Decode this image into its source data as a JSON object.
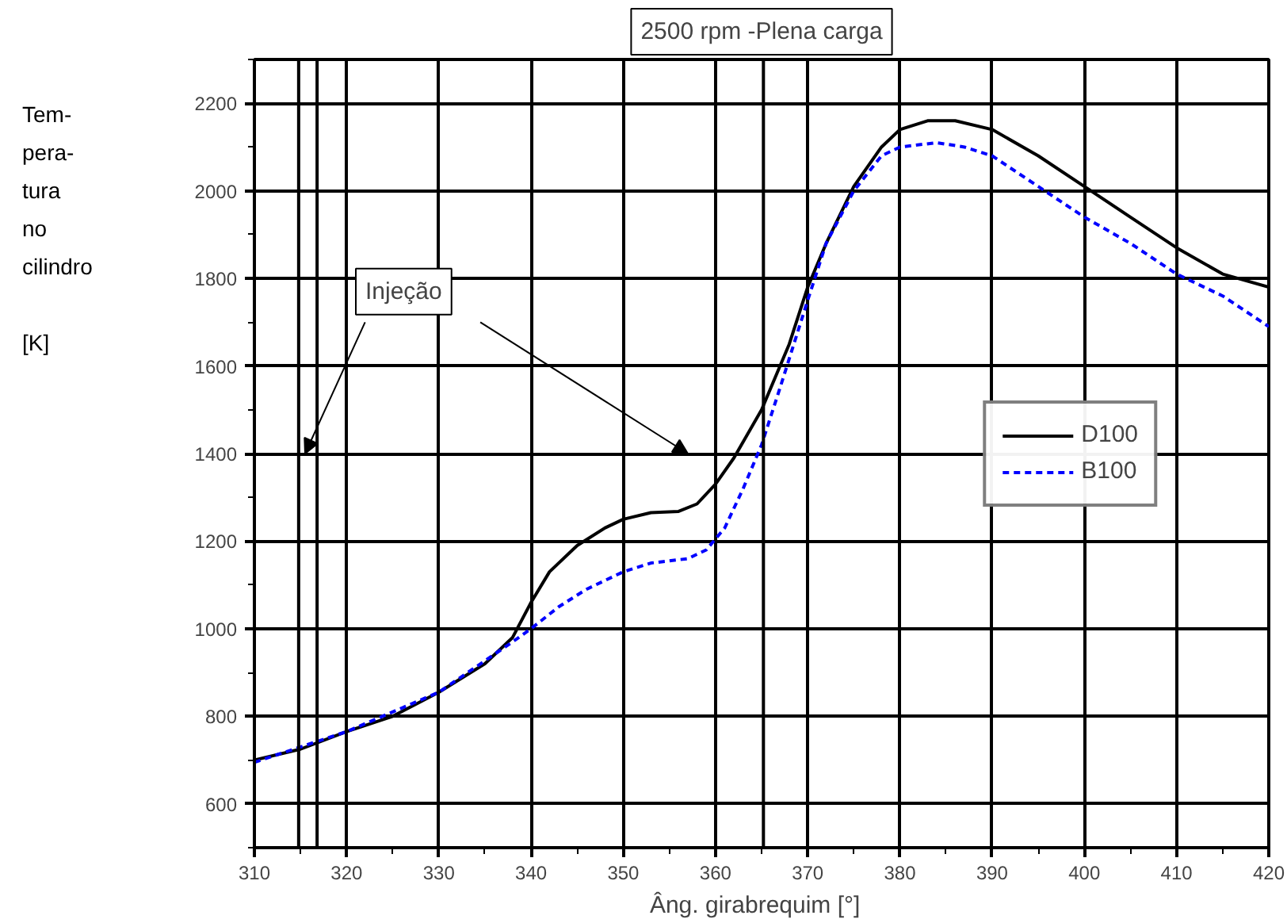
{
  "chart_data": {
    "type": "line",
    "title": "2500 rpm -Plena carga",
    "xlabel": "Âng. girabrequim   [°]",
    "ylabel": "Tem-\npera-\ntura\nno\ncilindro\n\n[K]",
    "xlim": [
      310,
      420
    ],
    "xticks": [
      310,
      320,
      330,
      340,
      350,
      360,
      370,
      380,
      390,
      400,
      410,
      420
    ],
    "ylim": [
      500,
      2300
    ],
    "yticks": [
      600,
      800,
      1000,
      1200,
      1400,
      1600,
      1800,
      2000,
      2200
    ],
    "grid": true,
    "legend": "right",
    "annotations": [
      "Injeção"
    ],
    "ref_lines": [
      {
        "axis": "x",
        "value": 314.8,
        "label": null,
        "color": "#000000"
      },
      {
        "axis": "x",
        "value": 316.8,
        "label": null,
        "color": "#000000"
      },
      {
        "axis": "x",
        "value": 365.2,
        "label": null,
        "color": "#000000"
      }
    ],
    "series": [
      {
        "name": "D100",
        "color": "#000000",
        "line_style": "solid",
        "x": [
          310,
          315,
          320,
          325,
          330,
          335,
          338,
          340,
          342,
          345,
          348,
          350,
          353,
          356,
          358,
          360,
          362,
          365,
          368,
          370,
          372,
          375,
          378,
          380,
          383,
          386,
          390,
          395,
          400,
          405,
          410,
          415,
          420
        ],
        "values": [
          700,
          725,
          765,
          800,
          855,
          920,
          980,
          1060,
          1130,
          1190,
          1230,
          1250,
          1265,
          1268,
          1285,
          1330,
          1390,
          1500,
          1650,
          1780,
          1880,
          2010,
          2100,
          2140,
          2160,
          2160,
          2140,
          2080,
          2010,
          1940,
          1870,
          1810,
          1780
        ]
      },
      {
        "name": "B100",
        "color": "#0000ff",
        "line_style": "dashed",
        "x": [
          310,
          320,
          330,
          338,
          340,
          343,
          346,
          350,
          353,
          357,
          359,
          361,
          363,
          365,
          367,
          370,
          372,
          375,
          378,
          380,
          384,
          387,
          390,
          395,
          400,
          405,
          410,
          415,
          420
        ],
        "values": [
          695,
          765,
          855,
          970,
          1000,
          1050,
          1090,
          1130,
          1150,
          1160,
          1180,
          1230,
          1320,
          1420,
          1550,
          1750,
          1880,
          2000,
          2080,
          2100,
          2110,
          2100,
          2080,
          2010,
          1940,
          1880,
          1810,
          1760,
          1690
        ]
      }
    ]
  }
}
